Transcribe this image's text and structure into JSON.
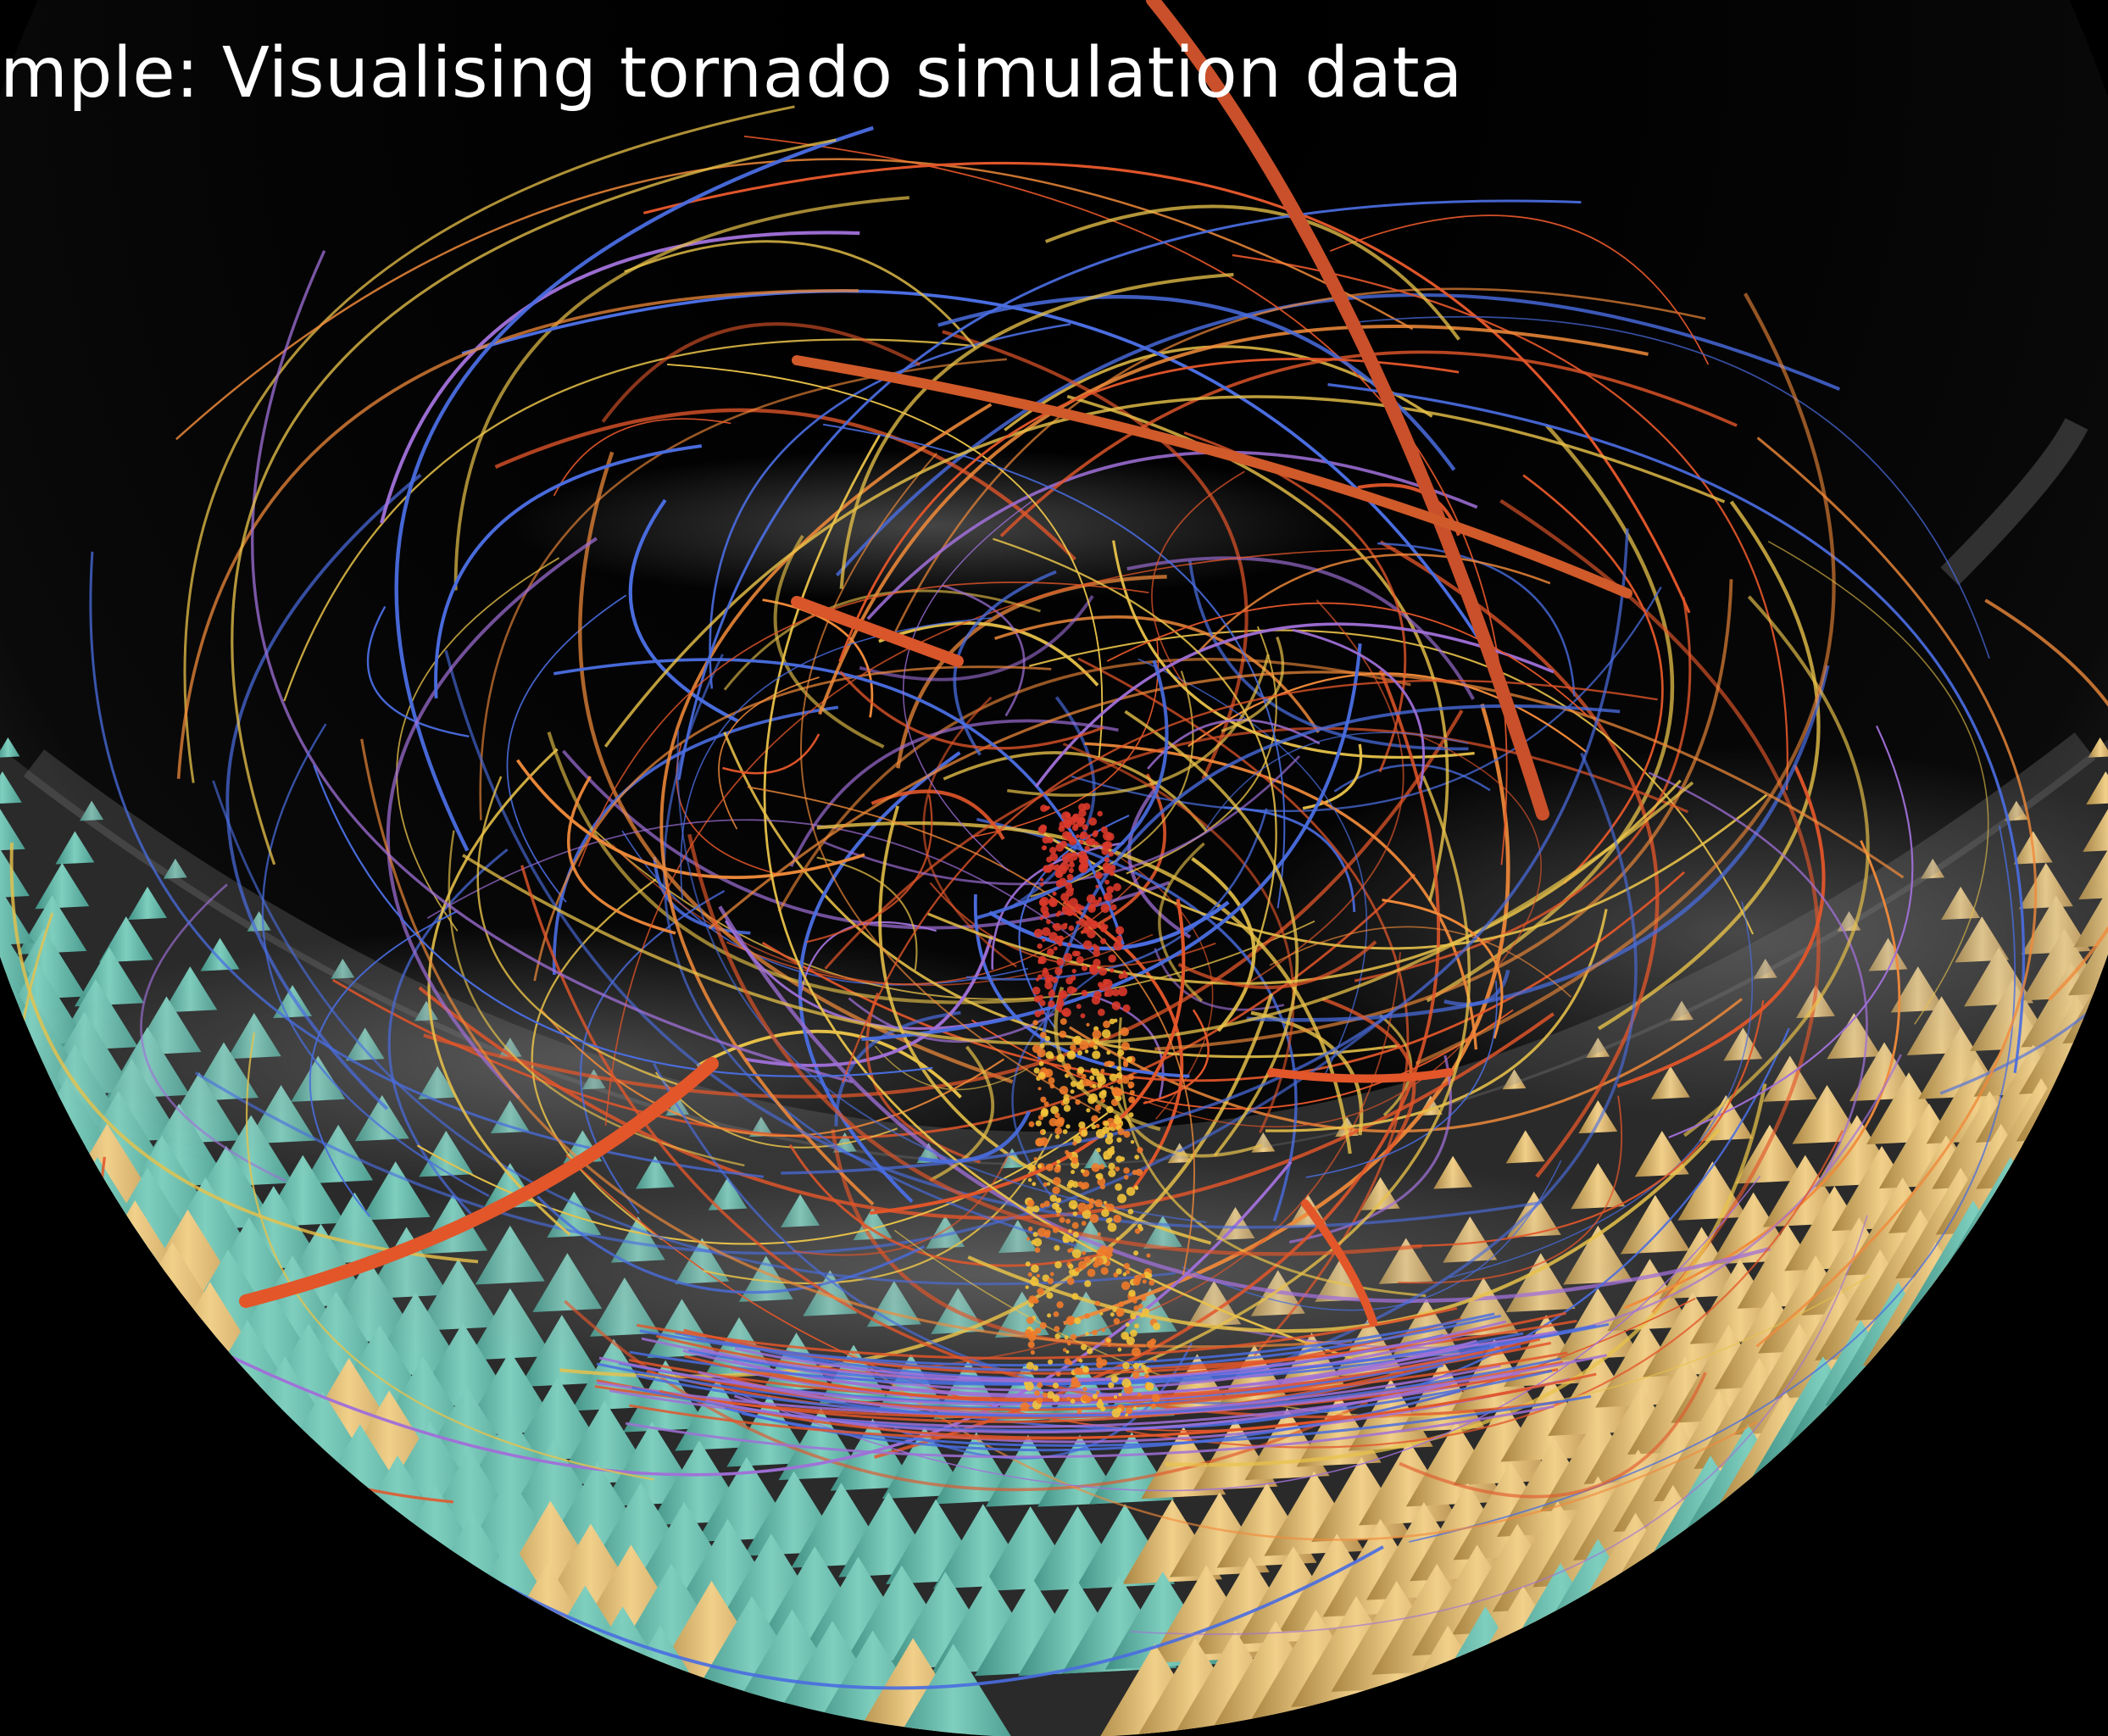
{
  "slide": {
    "title": "mple: Visualising tornado simulation data"
  },
  "scene": {
    "background_color": "#000000",
    "dome_shading_color": "#5a5a5a",
    "ground_color": "#2a2a2a",
    "cone_colors": {
      "teal": "#5fb3a6",
      "gold": "#d9b26a",
      "cyan": "#4fb9c9"
    },
    "streamline_colors": {
      "orange_red": "#e2562a",
      "orange": "#f08a3a",
      "yellow": "#e8c24a",
      "blue": "#4a6de0",
      "purple": "#a070d8"
    },
    "vortex_core_color": "#e05a2a",
    "particle_colors": [
      "#f2c33a",
      "#d9392a",
      "#f07a2a"
    ]
  }
}
